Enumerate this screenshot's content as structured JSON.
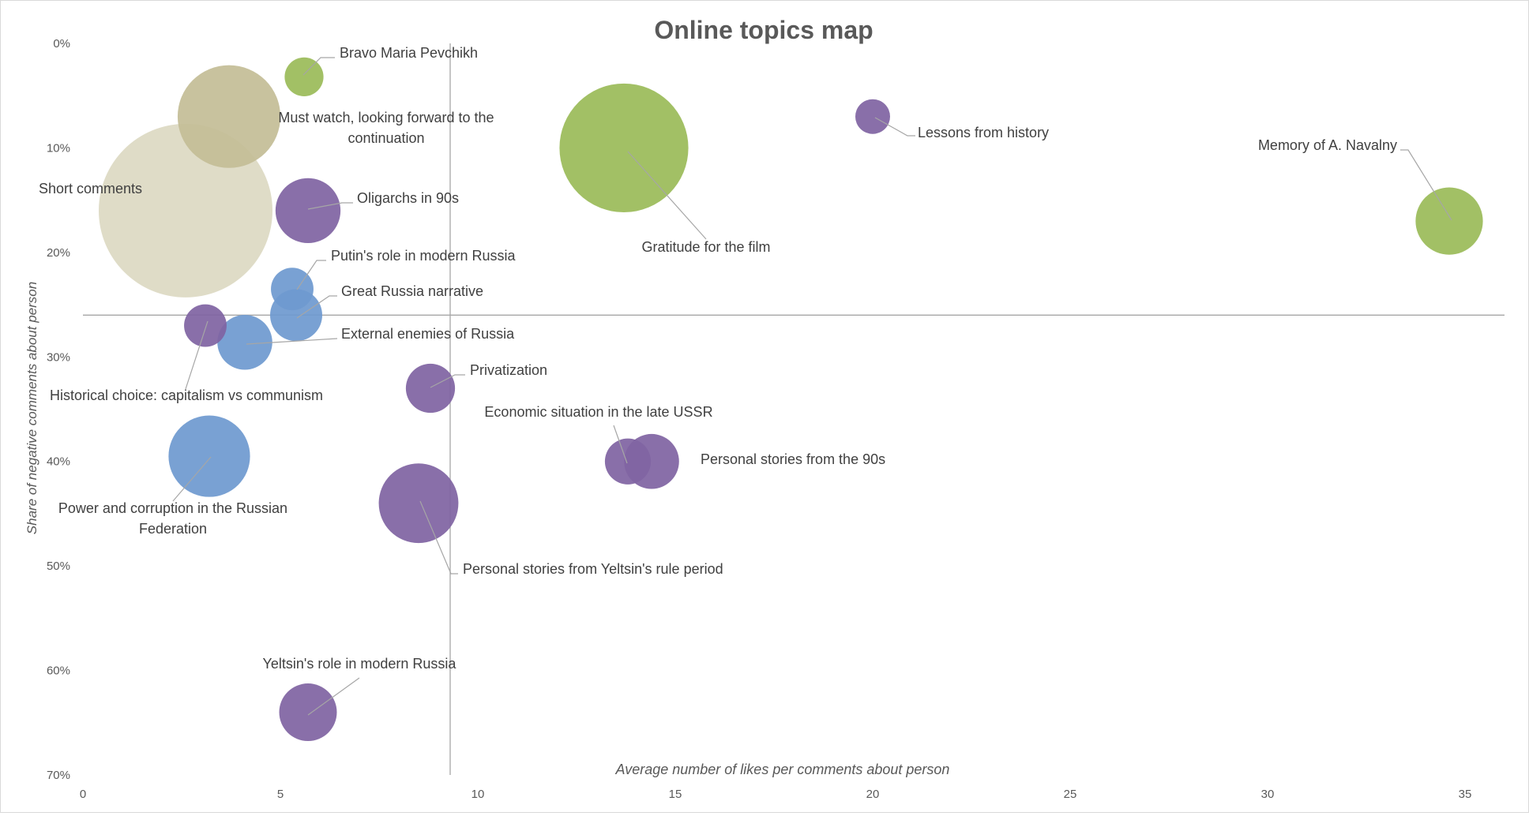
{
  "chart_data": {
    "type": "bubble",
    "title": "Online topics map",
    "xlabel": "Average number of likes per comments about person",
    "ylabel": "Share of negative comments about person",
    "xlim": [
      0,
      35
    ],
    "ylim": [
      0,
      70
    ],
    "y_reversed": true,
    "x_ticks": [
      "0",
      "5",
      "10",
      "15",
      "20",
      "25",
      "30",
      "35"
    ],
    "y_ticks": [
      "0%",
      "10%",
      "20%",
      "30%",
      "40%",
      "50%",
      "60%",
      "70%"
    ],
    "reference_lines": {
      "x": 9.3,
      "y": 26
    },
    "grid": false,
    "legend": "none",
    "colors": {
      "green": "#9bbb59",
      "purple": "#8064a2",
      "blue": "#6f9ad0",
      "khaki": "#c4bd97",
      "beige": "#ddd9c3",
      "text": "#404040",
      "axis_text": "#595959",
      "title": "#595959",
      "line": "#a6a6a6"
    },
    "points": [
      {
        "label": "Short comments",
        "x": 2.6,
        "y": 16.0,
        "size": 1.0,
        "color": "beige"
      },
      {
        "label": "Must watch, looking forward to the continuation",
        "x": 3.7,
        "y": 7.0,
        "size": 0.35,
        "color": "khaki"
      },
      {
        "label": "Bravo Maria Pevchikh",
        "x": 5.6,
        "y": 3.2,
        "size": 0.05,
        "color": "green"
      },
      {
        "label": "Gratitude for the film",
        "x": 13.7,
        "y": 10.0,
        "size": 0.55,
        "color": "green"
      },
      {
        "label": "Lessons from history",
        "x": 20.0,
        "y": 7.0,
        "size": 0.04,
        "color": "purple"
      },
      {
        "label": "Memory of A. Navalny",
        "x": 34.6,
        "y": 17.0,
        "size": 0.15,
        "color": "green"
      },
      {
        "label": "Oligarchs in 90s",
        "x": 5.7,
        "y": 16.0,
        "size": 0.14,
        "color": "purple"
      },
      {
        "label": "Putin's role in modern Russia",
        "x": 5.3,
        "y": 23.5,
        "size": 0.06,
        "color": "blue"
      },
      {
        "label": "Great Russia narrative",
        "x": 5.4,
        "y": 26.0,
        "size": 0.09,
        "color": "blue"
      },
      {
        "label": "External enemies of Russia",
        "x": 4.1,
        "y": 28.6,
        "size": 0.1,
        "color": "blue"
      },
      {
        "label": "Historical choice: capitalism vs communism",
        "x": 3.1,
        "y": 27.0,
        "size": 0.06,
        "color": "purple"
      },
      {
        "label": "Privatization",
        "x": 8.8,
        "y": 33.0,
        "size": 0.08,
        "color": "purple"
      },
      {
        "label": "Economic situation in the  late USSR",
        "x": 13.8,
        "y": 40.0,
        "size": 0.07,
        "color": "purple"
      },
      {
        "label": "Personal stories from the 90s",
        "x": 14.4,
        "y": 40.0,
        "size": 0.1,
        "color": "purple"
      },
      {
        "label": "Power and corruption in the Russian Federation",
        "x": 3.2,
        "y": 39.5,
        "size": 0.22,
        "color": "blue"
      },
      {
        "label": "Personal stories from Yeltsin's rule period",
        "x": 8.5,
        "y": 44.0,
        "size": 0.21,
        "color": "purple"
      },
      {
        "label": "Yeltsin's role in modern Russia",
        "x": 5.7,
        "y": 64.0,
        "size": 0.11,
        "color": "purple"
      }
    ]
  }
}
